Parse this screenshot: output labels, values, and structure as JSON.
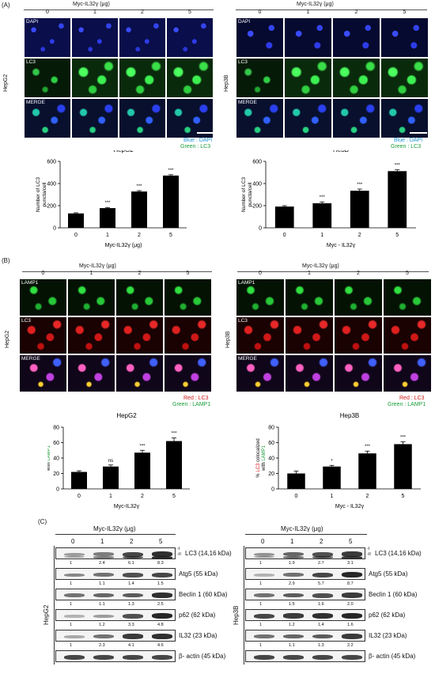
{
  "panelA": {
    "label": "(A)",
    "left": {
      "title": "Myc-IL32γ (μg)",
      "doses": [
        "0",
        "1",
        "2",
        "5"
      ],
      "cell": "HepG2",
      "rows": [
        "DAPI",
        "LC3",
        "MERGE"
      ],
      "legend1": "Blue : DAPI",
      "legend2": "Green : LC3"
    },
    "right": {
      "title": "Myc-IL32γ (μg)",
      "doses": [
        "0",
        "1",
        "2",
        "5"
      ],
      "cell": "Hep3B",
      "rows": [
        "DAPI",
        "LC3",
        "MERGE"
      ],
      "legend1": "Blue : DAPI",
      "legend2": "Green : LC3"
    }
  },
  "panelB": {
    "label": "(B)",
    "left": {
      "title": "Myc-IL32γ (μg)",
      "doses": [
        "0",
        "1",
        "2",
        "5"
      ],
      "cell": "HepG2",
      "rows": [
        "LAMP1",
        "LC3",
        "MERGE"
      ],
      "legend1": "Red : LC3",
      "legend2": "Green : LAMP1"
    },
    "right": {
      "title": "Myc-IL32γ (μg)",
      "doses": [
        "0",
        "1",
        "2",
        "5"
      ],
      "cell": "Hep3B",
      "rows": [
        "LAMP1",
        "LC3",
        "MERGE"
      ],
      "legend1": "Red : LC3",
      "legend2": "Green : LAMP1"
    }
  },
  "chart_data": [
    {
      "type": "bar",
      "title": "HepG2",
      "categories": [
        "0",
        "1",
        "2",
        "5"
      ],
      "values": [
        130,
        178,
        328,
        472
      ],
      "errors": [
        6,
        6,
        8,
        8
      ],
      "sig": [
        "",
        "***",
        "***",
        "***"
      ],
      "xlabel": "Myc-IL32γ (μg)",
      "ylabel": "Number of LC3 puncta/cell",
      "ylim": [
        0,
        600
      ],
      "yticks": [
        0,
        200,
        400,
        600
      ]
    },
    {
      "type": "bar",
      "title": "He3B",
      "categories": [
        "0",
        "1",
        "2",
        "5"
      ],
      "values": [
        192,
        222,
        335,
        512
      ],
      "errors": [
        8,
        12,
        15,
        12
      ],
      "sig": [
        "",
        "***",
        "***",
        "***"
      ],
      "xlabel": "Myc - IL32γ",
      "ylabel": "Number of LC3 puncta/cell",
      "ylim": [
        0,
        600
      ],
      "yticks": [
        0,
        200,
        400,
        600
      ]
    },
    {
      "type": "bar",
      "title": "HepG2",
      "categories": [
        "0",
        "1",
        "2",
        "5"
      ],
      "values": [
        22,
        29,
        47,
        62
      ],
      "errors": [
        1.5,
        2,
        3,
        4
      ],
      "sig": [
        "",
        "ns",
        "***",
        "***"
      ],
      "xlabel": "Myc-IL32γ",
      "ylabel": "% LC3 colocalized with LAMP1",
      "ylim": [
        0,
        80
      ],
      "yticks": [
        0,
        20,
        40,
        60,
        80
      ]
    },
    {
      "type": "bar",
      "title": "Hep3B",
      "categories": [
        "0",
        "1",
        "2",
        "5"
      ],
      "values": [
        20,
        29,
        46,
        58
      ],
      "errors": [
        3,
        1.5,
        3,
        3
      ],
      "sig": [
        "",
        "*",
        "***",
        "***"
      ],
      "xlabel": "Myc - IL32γ",
      "ylabel": "% LC3 colocalized with LAMP1",
      "ylim": [
        0,
        80
      ],
      "yticks": [
        0,
        20,
        40,
        60,
        80
      ]
    }
  ],
  "panelC": {
    "label": "(C)",
    "left": {
      "title": "Myc-IL32γ (μg)",
      "doses": [
        "0",
        "1",
        "2",
        "5"
      ],
      "cell": "HepG2",
      "blots": [
        {
          "name": "LC3 (14,16 kDa)",
          "ratios": [
            "1",
            "2.4",
            "6.1",
            "8.3"
          ],
          "intensity": [
            0.4,
            0.55,
            0.8,
            0.9
          ],
          "marks": [
            "-I",
            "-II"
          ]
        },
        {
          "name": "Atg5 (55 kDa)",
          "ratios": [
            "1",
            "1.1",
            "1.4",
            "1.5"
          ],
          "intensity": [
            0.5,
            0.6,
            0.75,
            0.8
          ]
        },
        {
          "name": "Beclin 1 (60 kDa)",
          "ratios": [
            "1",
            "1.1",
            "1.3",
            "2.5"
          ],
          "intensity": [
            0.6,
            0.65,
            0.7,
            0.9
          ]
        },
        {
          "name": "p62 (62 kDa)",
          "ratios": [
            "1",
            "1.2",
            "3.3",
            "4.8"
          ],
          "intensity": [
            0.3,
            0.4,
            0.75,
            0.95
          ]
        },
        {
          "name": "IL32 (23 kDa)",
          "ratios": [
            "1",
            "2.3",
            "4.1",
            "4.6"
          ],
          "intensity": [
            0.35,
            0.6,
            0.85,
            0.9
          ]
        },
        {
          "name": "β- actin (45 kDa)",
          "ratios": [],
          "intensity": [
            0.8,
            0.8,
            0.8,
            0.8
          ]
        }
      ]
    },
    "right": {
      "title": "Myc-IL32γ (μg)",
      "doses": [
        "0",
        "1",
        "2",
        "5"
      ],
      "cell": "Hep3B",
      "blots": [
        {
          "name": "LC3 (14,16 kDa)",
          "ratios": [
            "1",
            "1.9",
            "2.7",
            "3.1"
          ],
          "intensity": [
            0.45,
            0.65,
            0.75,
            0.85
          ],
          "marks": [
            "-I",
            "-II"
          ]
        },
        {
          "name": "Atg5 (55 kDa)",
          "ratios": [
            "1",
            "2.9",
            "5.7",
            "8.7"
          ],
          "intensity": [
            0.3,
            0.6,
            0.8,
            0.95
          ]
        },
        {
          "name": "Beclin 1 (60 kDa)",
          "ratios": [
            "1",
            "1.5",
            "1.6",
            "2.0"
          ],
          "intensity": [
            0.6,
            0.7,
            0.75,
            0.85
          ]
        },
        {
          "name": "p62 (62 kDa)",
          "ratios": [
            "1",
            "1.2",
            "1.4",
            "1.6"
          ],
          "intensity": [
            0.8,
            0.85,
            0.9,
            0.95
          ]
        },
        {
          "name": "IL32 (23 kDa)",
          "ratios": [
            "1",
            "1.1",
            "1.3",
            "2.2"
          ],
          "intensity": [
            0.6,
            0.65,
            0.7,
            0.85
          ]
        },
        {
          "name": "β- actin (45 kDa)",
          "ratios": [],
          "intensity": [
            0.8,
            0.8,
            0.8,
            0.8
          ]
        }
      ]
    }
  }
}
